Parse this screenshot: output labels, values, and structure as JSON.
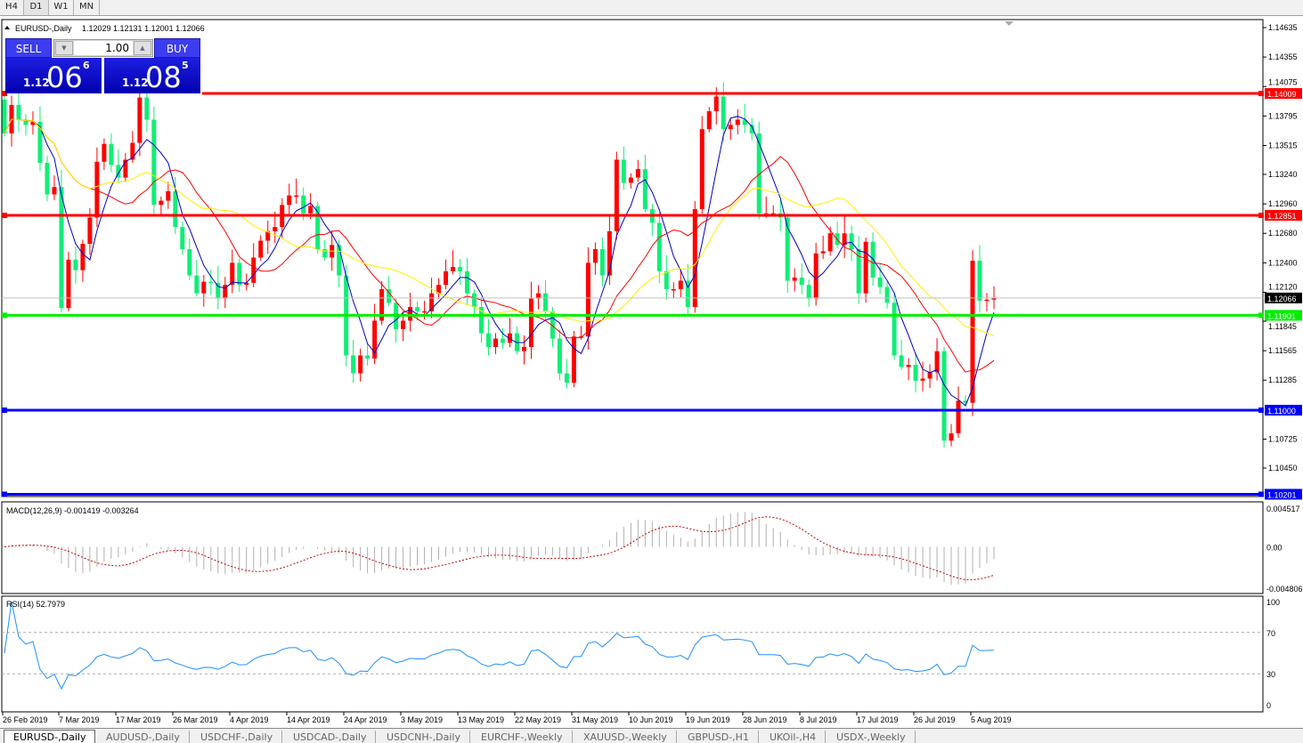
{
  "toolbar": {
    "timeframes": [
      "H4",
      "D1",
      "W1",
      "MN"
    ],
    "active": "D1"
  },
  "chart": {
    "title": "EURUSD-,Daily",
    "ohlc_text": "1.12029 1.12131 1.12001 1.12066",
    "macd_label": "MACD(12,26,9) -0.001419 -0.003264",
    "rsi_label": "RSI(14) 52.7979"
  },
  "trade_panel": {
    "sell_label": "SELL",
    "buy_label": "BUY",
    "lot": "1.00",
    "sell_small": "1.12",
    "sell_big": "06",
    "sell_pip": "6",
    "buy_small": "1.12",
    "buy_big": "08",
    "buy_pip": "5"
  },
  "price_axis": [
    "1.14635",
    "1.14355",
    "1.14075",
    "1.13795",
    "1.13515",
    "1.13240",
    "1.12960",
    "1.12680",
    "1.12400",
    "1.12120",
    "1.11845",
    "1.11565",
    "1.11285",
    "1.10725",
    "1.10450"
  ],
  "hlines": [
    {
      "price": "1.14009",
      "color": "#ff0000"
    },
    {
      "price": "1.12851",
      "color": "#ff0000"
    },
    {
      "price": "1.11901",
      "color": "#00ee00"
    },
    {
      "price": "1.11000",
      "color": "#0000ff"
    },
    {
      "price": "1.10201",
      "color": "#0000ff"
    }
  ],
  "bid_line": {
    "price": "1.12066",
    "color": "#000000"
  },
  "macd_axis": [
    "0.004517",
    "0.00",
    "-0.004806"
  ],
  "rsi_axis": [
    "100",
    "70",
    "30",
    "0"
  ],
  "date_axis": [
    "26 Feb 2019",
    "7 Mar 2019",
    "17 Mar 2019",
    "26 Mar 2019",
    "4 Apr 2019",
    "14 Apr 2019",
    "24 Apr 2019",
    "3 May 2019",
    "13 May 2019",
    "22 May 2019",
    "31 May 2019",
    "10 Jun 2019",
    "19 Jun 2019",
    "28 Jun 2019",
    "8 Jul 2019",
    "17 Jul 2019",
    "26 Jul 2019",
    "5 Aug 2019"
  ],
  "tabs": [
    "EURUSD-,Daily",
    "AUDUSD-,Daily",
    "USDCHF-,Daily",
    "USDCAD-,Daily",
    "USDCNH-,Daily",
    "EURCHF-,Weekly",
    "XAUUSD-,Weekly",
    "GBPUSD-,H1",
    "UKOil-,H4",
    "USDX-,Weekly"
  ],
  "active_tab": "EURUSD-,Daily",
  "colors": {
    "bull_candle": "#ff0000",
    "bear_candle": "#11ee77",
    "ma_fast": "#0000cc",
    "ma_mid": "#ff0000",
    "ma_slow": "#ffee00",
    "rsi": "#1e90ff",
    "macd_signal": "#cc0000",
    "macd_hist": "#b0b0b0"
  },
  "chart_data": {
    "type": "candlestick",
    "symbol": "EURUSD-",
    "timeframe": "Daily",
    "ylim": [
      1.1018,
      1.1469
    ],
    "closes": [
      1.1363,
      1.139,
      1.1376,
      1.1371,
      1.1374,
      1.1335,
      1.1305,
      1.1312,
      1.1197,
      1.1243,
      1.1233,
      1.1258,
      1.1283,
      1.1336,
      1.1353,
      1.1333,
      1.1321,
      1.1338,
      1.1354,
      1.1397,
      1.1376,
      1.1295,
      1.1299,
      1.1308,
      1.1274,
      1.1253,
      1.1228,
      1.1211,
      1.1222,
      1.1221,
      1.1206,
      1.1219,
      1.124,
      1.1219,
      1.1221,
      1.1245,
      1.1261,
      1.127,
      1.1274,
      1.1295,
      1.1304,
      1.1304,
      1.1287,
      1.1294,
      1.1253,
      1.1245,
      1.1257,
      1.1228,
      1.1152,
      1.1135,
      1.1152,
      1.1149,
      1.1185,
      1.1215,
      1.1202,
      1.1177,
      1.1185,
      1.1198,
      1.1194,
      1.1194,
      1.1211,
      1.1219,
      1.1232,
      1.1236,
      1.1232,
      1.1211,
      1.1198,
      1.1173,
      1.116,
      1.1168,
      1.1164,
      1.1173,
      1.1156,
      1.116,
      1.1206,
      1.1211,
      1.1194,
      1.1168,
      1.1135,
      1.1126,
      1.117,
      1.117,
      1.124,
      1.1253,
      1.1228,
      1.127,
      1.1338,
      1.1316,
      1.1321,
      1.1329,
      1.1291,
      1.1278,
      1.1232,
      1.1215,
      1.1215,
      1.1223,
      1.1198,
      1.1291,
      1.1367,
      1.1384,
      1.1398,
      1.1367,
      1.1371,
      1.1376,
      1.1371,
      1.1363,
      1.1287,
      1.1287,
      1.1287,
      1.1283,
      1.1223,
      1.1226,
      1.1219,
      1.1206,
      1.1249,
      1.1251,
      1.1268,
      1.1257,
      1.1268,
      1.1253,
      1.1211,
      1.126,
      1.1226,
      1.1217,
      1.1202,
      1.1152,
      1.1141,
      1.1143,
      1.1128,
      1.113,
      1.1136,
      1.1156,
      1.1071,
      1.1078,
      1.1109,
      1.1107,
      1.1242,
      1.1204,
      1.1205,
      1.12066
    ],
    "indicators": [
      "Moving averages (3)",
      "MACD(12,26,9)",
      "RSI(14)"
    ],
    "rsi_levels": [
      70,
      30
    ]
  }
}
